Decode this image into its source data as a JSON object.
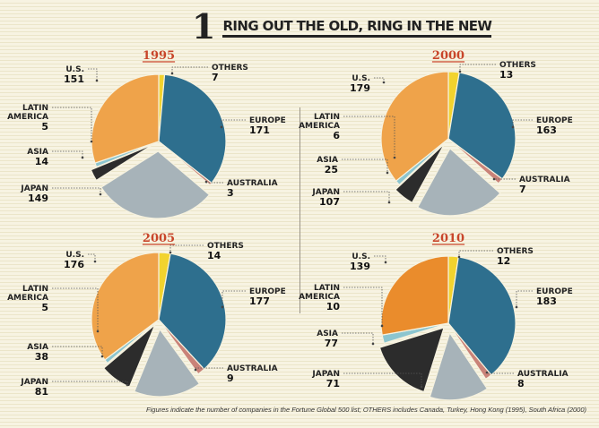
{
  "title": {
    "number": "1",
    "text": "RING OUT THE OLD, RING IN THE NEW"
  },
  "footnote": "Figures indicate the number of companies in the Fortune Global 500 list; OTHERS includes Canada, Turkey, Hong Kong (1995), South Africa (2000)",
  "colors": {
    "others": "#f2d32e",
    "europe": "#2e6f8e",
    "australia": "#c98278",
    "japan": "#a7b3b9",
    "asia": "#2c2c2c",
    "latin_america": "#8cc5cf",
    "us": "#efa34a",
    "us_2010": "#ea8c2c"
  },
  "chart_data": [
    {
      "type": "pie",
      "title": "1995",
      "slices": [
        {
          "label": "OTHERS",
          "value": 7
        },
        {
          "label": "EUROPE",
          "value": 171
        },
        {
          "label": "AUSTRALIA",
          "value": 3
        },
        {
          "label": "JAPAN",
          "value": 149
        },
        {
          "label": "ASIA",
          "value": 14
        },
        {
          "label": "LATIN AMERICA",
          "value": 5
        },
        {
          "label": "U.S.",
          "value": 151
        }
      ]
    },
    {
      "type": "pie",
      "title": "2000",
      "slices": [
        {
          "label": "OTHERS",
          "value": 13
        },
        {
          "label": "EUROPE",
          "value": 163
        },
        {
          "label": "AUSTRALIA",
          "value": 7
        },
        {
          "label": "JAPAN",
          "value": 107
        },
        {
          "label": "ASIA",
          "value": 25
        },
        {
          "label": "LATIN AMERICA",
          "value": 6
        },
        {
          "label": "U.S.",
          "value": 179
        }
      ]
    },
    {
      "type": "pie",
      "title": "2005",
      "slices": [
        {
          "label": "OTHERS",
          "value": 14
        },
        {
          "label": "EUROPE",
          "value": 177
        },
        {
          "label": "AUSTRALIA",
          "value": 9
        },
        {
          "label": "JAPAN",
          "value": 81
        },
        {
          "label": "ASIA",
          "value": 38
        },
        {
          "label": "LATIN AMERICA",
          "value": 5
        },
        {
          "label": "U.S.",
          "value": 176
        }
      ]
    },
    {
      "type": "pie",
      "title": "2010",
      "slices": [
        {
          "label": "OTHERS",
          "value": 12
        },
        {
          "label": "EUROPE",
          "value": 183
        },
        {
          "label": "AUSTRALIA",
          "value": 8
        },
        {
          "label": "JAPAN",
          "value": 71
        },
        {
          "label": "ASIA",
          "value": 77
        },
        {
          "label": "LATIN AMERICA",
          "value": 10
        },
        {
          "label": "U.S.",
          "value": 139
        }
      ]
    }
  ]
}
